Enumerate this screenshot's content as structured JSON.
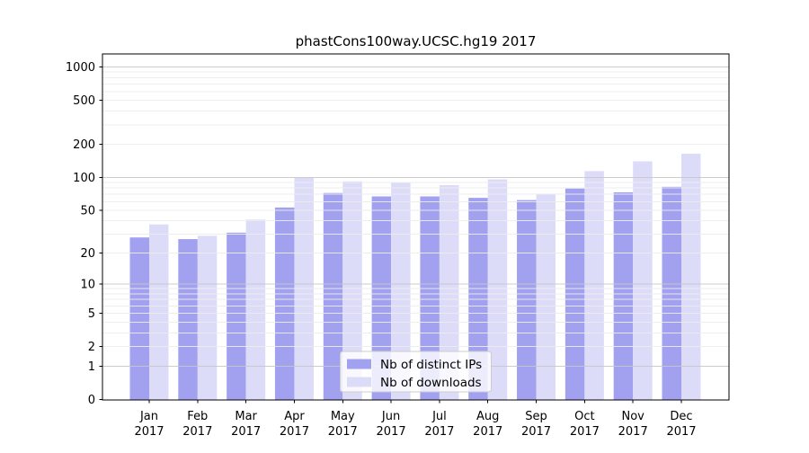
{
  "chart_data": {
    "type": "bar",
    "title": "phastCons100way.UCSC.hg19 2017",
    "categories": [
      "Jan 2017",
      "Feb 2017",
      "Mar 2017",
      "Apr 2017",
      "May 2017",
      "Jun 2017",
      "Jul 2017",
      "Aug 2017",
      "Sep 2017",
      "Oct 2017",
      "Nov 2017",
      "Dec 2017"
    ],
    "series": [
      {
        "name": "Nb of distinct IPs",
        "color": "#a1a1ef",
        "values": [
          28,
          27,
          31,
          53,
          72,
          67,
          67,
          65,
          62,
          79,
          73,
          82
        ]
      },
      {
        "name": "Nb of downloads",
        "color": "#dcdcf9",
        "values": [
          37,
          29,
          41,
          99,
          92,
          89,
          85,
          96,
          71,
          114,
          140,
          164
        ]
      }
    ],
    "yscale": "log1p",
    "yticks": [
      0,
      1,
      2,
      5,
      10,
      20,
      50,
      100,
      200,
      500,
      1000
    ],
    "ylim": [
      0,
      1300
    ],
    "grid": true,
    "legend": {
      "position": "lower center",
      "entries": [
        "Nb of distinct IPs",
        "Nb of downloads"
      ]
    }
  },
  "colors": {
    "background": "#ffffff",
    "axis": "#000000",
    "grid_major": "#c6c6c6",
    "grid_minor": "#ececec",
    "legend_background": "#ffffff",
    "legend_border": "#cccccc"
  }
}
